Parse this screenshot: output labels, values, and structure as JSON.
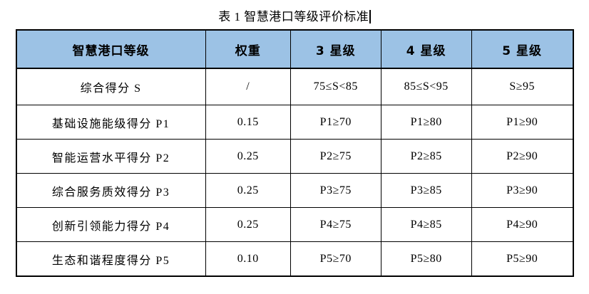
{
  "page": {
    "title": "表 1  智慧港口等级评价标准"
  },
  "colors": {
    "header_bg": "#9CC2E5",
    "border": "#000000",
    "background": "#FFFFFF"
  },
  "table": {
    "headers": [
      "智慧港口等级",
      "权重",
      "3 星级",
      "4 星级",
      "5 星级"
    ],
    "rows": [
      [
        "综合得分 S",
        "/",
        "75≤S<85",
        "85≤S<95",
        "S≥95"
      ],
      [
        "基础设施能级得分 P1",
        "0.15",
        "P1≥70",
        "P1≥80",
        "P1≥90"
      ],
      [
        "智能运营水平得分 P2",
        "0.25",
        "P2≥75",
        "P2≥85",
        "P2≥90"
      ],
      [
        "综合服务质效得分 P3",
        "0.25",
        "P3≥75",
        "P3≥85",
        "P3≥90"
      ],
      [
        "创新引领能力得分 P4",
        "0.25",
        "P4≥75",
        "P4≥85",
        "P4≥90"
      ],
      [
        "生态和谐程度得分 P5",
        "0.10",
        "P5≥70",
        "P5≥80",
        "P5≥90"
      ]
    ]
  }
}
